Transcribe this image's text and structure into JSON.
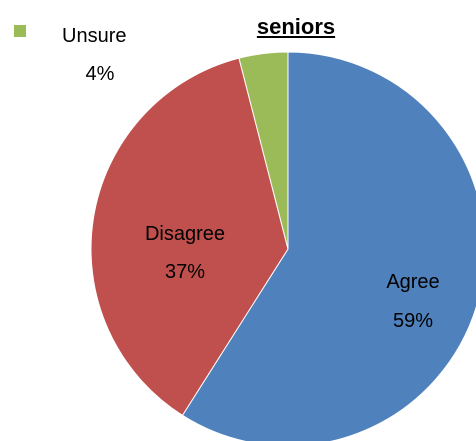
{
  "chart_data": {
    "type": "pie",
    "title": "seniors",
    "slices": [
      {
        "label": "Agree",
        "value": 59,
        "value_label": "59%",
        "color": "#4F81BD"
      },
      {
        "label": "Disagree",
        "value": 37,
        "value_label": "37%",
        "color": "#C0504D"
      },
      {
        "label": "Unsure",
        "value": 4,
        "value_label": "4%",
        "color": "#9BBB59"
      }
    ],
    "legend": "none"
  }
}
